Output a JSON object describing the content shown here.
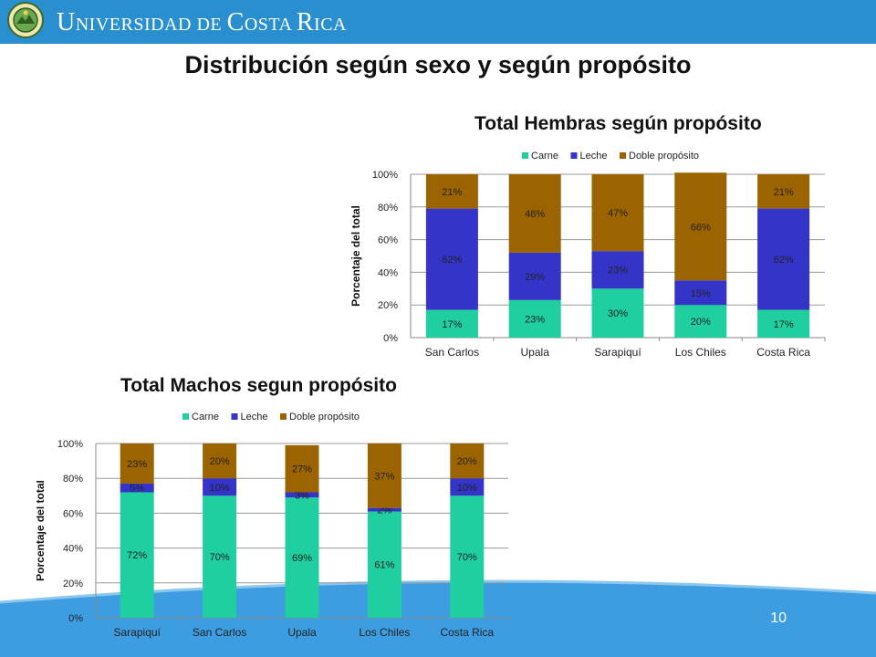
{
  "header": {
    "university_name_prefix": "U",
    "university_name_rest": "NIVERSIDAD DE ",
    "university_name_c": "C",
    "university_name_rest2": "OSTA ",
    "university_name_r": "R",
    "university_name_rest3": "ICA"
  },
  "page_title": "Distribución según sexo y según propósito",
  "page_number": "10",
  "colors": {
    "header": "#2a8fcf",
    "carne": "#1fcf9f",
    "leche": "#3434c8",
    "doble": "#9c6400",
    "wave": "#3d9de0"
  },
  "chart_data": [
    {
      "type": "bar",
      "stacked": true,
      "percent": true,
      "title": "Total Hembras según propósito",
      "ylabel": "Porcentaje del total",
      "xlabel": "",
      "ylim": [
        0,
        100
      ],
      "yticks": [
        "0%",
        "20%",
        "40%",
        "60%",
        "80%",
        "100%"
      ],
      "grid": true,
      "legend": "top",
      "categories": [
        "San Carlos",
        "Upala",
        "Sarapiquí",
        "Los Chiles",
        "Costa Rica"
      ],
      "series": [
        {
          "name": "Carne",
          "values": [
            17,
            23,
            30,
            20,
            17
          ],
          "labels": [
            "17%",
            "23%",
            "30%",
            "20%",
            "17%"
          ]
        },
        {
          "name": "Leche",
          "values": [
            62,
            29,
            23,
            15,
            62
          ],
          "labels": [
            "62%",
            "29%",
            "23%",
            "15%",
            "62%"
          ]
        },
        {
          "name": "Doble propósito",
          "values": [
            21,
            48,
            47,
            66,
            21
          ],
          "labels": [
            "21%",
            "48%",
            "47%",
            "66%",
            "21%"
          ]
        }
      ]
    },
    {
      "type": "bar",
      "stacked": true,
      "percent": true,
      "title": "Total Machos segun propósito",
      "ylabel": "Porcentaje del total",
      "xlabel": "",
      "ylim": [
        0,
        100
      ],
      "yticks": [
        "0%",
        "20%",
        "40%",
        "60%",
        "80%",
        "100%"
      ],
      "grid": true,
      "legend": "top",
      "categories": [
        "Sarapiquí",
        "San Carlos",
        "Upala",
        "Los Chiles",
        "Costa Rica"
      ],
      "series": [
        {
          "name": "Carne",
          "values": [
            72,
            70,
            69,
            61,
            70
          ],
          "labels": [
            "72%",
            "70%",
            "69%",
            "61%",
            "70%"
          ]
        },
        {
          "name": "Leche",
          "values": [
            5,
            10,
            3,
            2,
            10
          ],
          "labels": [
            "5%",
            "10%",
            "3%",
            "2%",
            "10%"
          ]
        },
        {
          "name": "Doble propósito",
          "values": [
            23,
            20,
            27,
            37,
            20
          ],
          "labels": [
            "23%",
            "20%",
            "27%",
            "37%",
            "20%"
          ]
        }
      ]
    }
  ]
}
